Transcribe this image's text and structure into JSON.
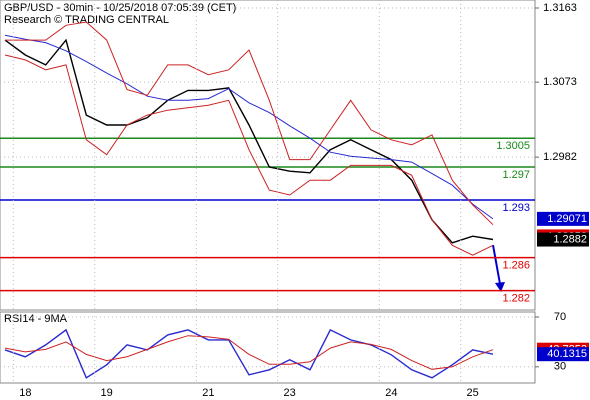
{
  "chart_data": [
    {
      "type": "line",
      "title": "GBP/USD - 30min - 10/25/2018 07:05:39 (CET)",
      "subtitle": "Research © TRADING CENTRAL",
      "categories": [
        null,
        "18",
        null,
        null,
        null,
        "19",
        null,
        null,
        null,
        null,
        "21",
        null,
        null,
        null,
        "23",
        null,
        null,
        null,
        null,
        "24",
        null,
        null,
        null,
        "25",
        null
      ],
      "series": [
        {
          "color": "#000000",
          "values": [
            1.3124,
            1.3106,
            1.3094,
            1.3124,
            1.3033,
            1.3021,
            1.3021,
            1.303,
            1.3051,
            1.3063,
            1.3063,
            1.3066,
            1.3021,
            1.297,
            1.2965,
            1.2963,
            1.2991,
            1.3003,
            1.2991,
            1.2979,
            1.2954,
            1.2906,
            1.2878,
            1.2886,
            1.2882
          ]
        },
        {
          "color": "#2a2ad0",
          "values": [
            1.313,
            1.3125,
            1.3121,
            1.3111,
            1.3098,
            1.3084,
            1.3071,
            1.3056,
            1.3051,
            1.3051,
            1.3053,
            1.3065,
            1.3048,
            1.3036,
            1.302,
            1.3005,
            1.2988,
            1.2983,
            1.2981,
            1.2979,
            1.2976,
            1.2962,
            1.2948,
            1.2925,
            1.29071
          ]
        },
        {
          "color": "#cc2222",
          "values": [
            1.3124,
            1.3124,
            1.3124,
            1.3142,
            1.3146,
            1.3124,
            1.3064,
            1.3057,
            1.3094,
            1.3094,
            1.3082,
            1.3088,
            1.3112,
            1.3051,
            1.2979,
            1.2979,
            1.3015,
            1.3051,
            1.3015,
            1.3003,
            1.2997,
            1.3009,
            1.2954,
            1.2924,
            1.29
          ]
        },
        {
          "color": "#cc2222",
          "values": [
            1.3106,
            1.31,
            1.3088,
            1.3094,
            1.3003,
            1.2985,
            1.3021,
            1.3033,
            1.3039,
            1.3042,
            1.3045,
            1.3051,
            1.2991,
            1.2942,
            1.2936,
            1.2954,
            1.2954,
            1.2972,
            1.2972,
            1.2972,
            1.296,
            1.2906,
            1.2875,
            1.2863,
            1.2875
          ]
        }
      ],
      "markers": [
        {
          "value": 1.28858,
          "color": "#dd0000"
        }
      ],
      "levels": [
        {
          "value": 1.3005,
          "color": "#1a8a1a"
        },
        {
          "value": 1.297,
          "color": "#1a8a1a"
        },
        {
          "value": 1.293,
          "color": "#0000cc"
        },
        {
          "value": 1.286,
          "color": "#dd0000"
        },
        {
          "value": 1.282,
          "color": "#dd0000"
        }
      ],
      "ylim": [
        1.27965,
        1.31727
      ],
      "yticks": [
        1.2982,
        1.3073,
        1.3163
      ],
      "grid": true
    },
    {
      "type": "line",
      "title": "RSI14 - 9MA",
      "series": [
        {
          "color": "#2a2ad0",
          "values": [
            43.6,
            38,
            47.6,
            59.6,
            21.2,
            31.6,
            47.6,
            43.6,
            55.6,
            59.6,
            51.6,
            51.6,
            23.6,
            27.6,
            35.6,
            27.6,
            59.6,
            51.6,
            47.6,
            39.6,
            27.6,
            21.2,
            31.6,
            43.6,
            40.1315
          ]
        },
        {
          "color": "#cc2222",
          "values": [
            45,
            42,
            44,
            50,
            40,
            35,
            38,
            44,
            50,
            55,
            54,
            52,
            40,
            32,
            32,
            34,
            45,
            50,
            48,
            44,
            35,
            28,
            30,
            38,
            43.7253
          ]
        }
      ],
      "ylim": [
        17,
        74
      ],
      "yticks": [
        30,
        70
      ],
      "grid": true
    }
  ]
}
